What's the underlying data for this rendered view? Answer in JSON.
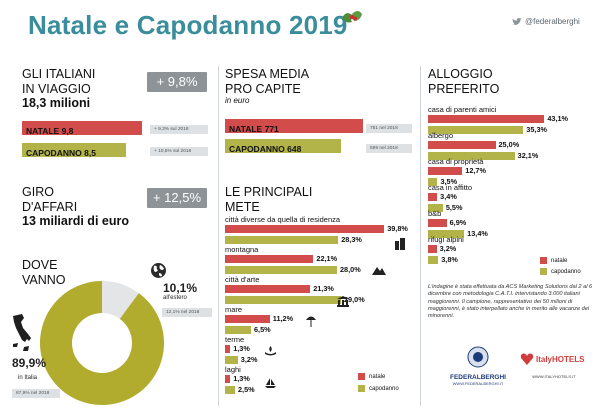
{
  "title": "Natale e Capodanno 2019",
  "twitter_handle": "@federalberghi",
  "colors": {
    "natale": "#d24c4c",
    "capodanno": "#b2b44a",
    "accent": "#3a8d9a",
    "pill": "#8d9397"
  },
  "travelers": {
    "heading_1": "GLI ITALIANI",
    "heading_2": "IN VIAGGIO",
    "total": "18,3 milioni",
    "pill": "+ 9,8%",
    "natale_label": "NATALE",
    "natale_value": "9,8",
    "natale_num": 9.8,
    "natale_note": "+ 9,3% sul 2018",
    "capodanno_label": "CAPODANNO",
    "capodanno_value": "8,5",
    "capodanno_num": 8.5,
    "capodanno_note": "+ 10,5% sul 2018"
  },
  "turnover": {
    "heading_1": "GIRO",
    "heading_2": "D'AFFARI",
    "total": "13 miliardi di euro",
    "pill": "+ 12,5%"
  },
  "where": {
    "heading_1": "DOVE",
    "heading_2": "VANNO",
    "abroad_pct": "10,1%",
    "abroad_label": "all'estero",
    "abroad_note": "12,1% nel 2018",
    "italy_pct": "89,9%",
    "italy_label": "in Italia",
    "italy_note": "87,9% nel 2018"
  },
  "spending": {
    "heading_1": "SPESA MEDIA",
    "heading_2": "PRO CAPITE",
    "unit": "in euro",
    "natale_label": "NATALE",
    "natale_value": "771",
    "natale_num": 771,
    "natale_note": "781 nel 2018",
    "capodanno_label": "CAPODANNO",
    "capodanno_value": "648",
    "capodanno_num": 648,
    "capodanno_note": "599 nel 2018"
  },
  "destinations": {
    "heading_1": "LE PRINCIPALI",
    "heading_2": "METE",
    "legend_natale": "natale",
    "legend_capodanno": "capodanno"
  },
  "lodging": {
    "heading_1": "ALLOGGIO",
    "heading_2": "PREFERITO",
    "legend_natale": "natale",
    "legend_capodanno": "capodanno"
  },
  "footnote": "L'indagine è stata effettuata da ACS Marketing Solutions dal 2 al 6 dicembre con metodologia C.A.T.I. intervistando 3.000 italiani maggiorenni. Il campione, rappresentativo dei 50 milioni di maggiorenni, è stato interpellato anche in merito alle vacanze dei minorenni.",
  "logos": {
    "federalberghi": "FEDERALBERGHI",
    "federalberghi_url": "WWW.FEDERALBERGHI.IT",
    "italyhotels": "ItalyHOTELS",
    "italyhotels_url": "WWW.ITALYHOTELS.IT"
  },
  "chart_data": [
    {
      "type": "bar",
      "title": "LE PRINCIPALI METE",
      "categories": [
        "città diverse da quella di residenza",
        "montagna",
        "città d'arte",
        "mare",
        "terme",
        "laghi"
      ],
      "series": [
        {
          "name": "natale",
          "values": [
            39.8,
            22.1,
            21.3,
            11.2,
            1.3,
            1.3
          ],
          "labels": [
            "39,8%",
            "22,1%",
            "21,3%",
            "11,2%",
            "1,3%",
            "1,3%"
          ]
        },
        {
          "name": "capodanno",
          "values": [
            28.3,
            28.0,
            29.0,
            6.5,
            3.2,
            2.5
          ],
          "labels": [
            "28,3%",
            "28,0%",
            "29,0%",
            "6,5%",
            "3,2%",
            "2,5%"
          ]
        }
      ],
      "xlim": [
        0,
        45
      ]
    },
    {
      "type": "bar",
      "title": "ALLOGGIO PREFERITO",
      "categories": [
        "casa di parenti amici",
        "albergo",
        "casa di proprietà",
        "casa in affitto",
        "b&b",
        "rifugi alpini"
      ],
      "series": [
        {
          "name": "natale",
          "values": [
            43.1,
            25.0,
            12.7,
            3.4,
            6.9,
            3.2
          ],
          "labels": [
            "43,1%",
            "25,0%",
            "12,7%",
            "3,4%",
            "6,9%",
            "3,2%"
          ]
        },
        {
          "name": "capodanno",
          "values": [
            35.3,
            32.1,
            3.5,
            5.5,
            13.4,
            3.8
          ],
          "labels": [
            "35,3%",
            "32,1%",
            "3,5%",
            "5,5%",
            "13,4%",
            "3,8%"
          ]
        }
      ],
      "xlim": [
        0,
        45
      ]
    },
    {
      "type": "pie",
      "title": "DOVE VANNO",
      "categories": [
        "in Italia",
        "all'estero"
      ],
      "values": [
        89.9,
        10.1
      ]
    }
  ]
}
